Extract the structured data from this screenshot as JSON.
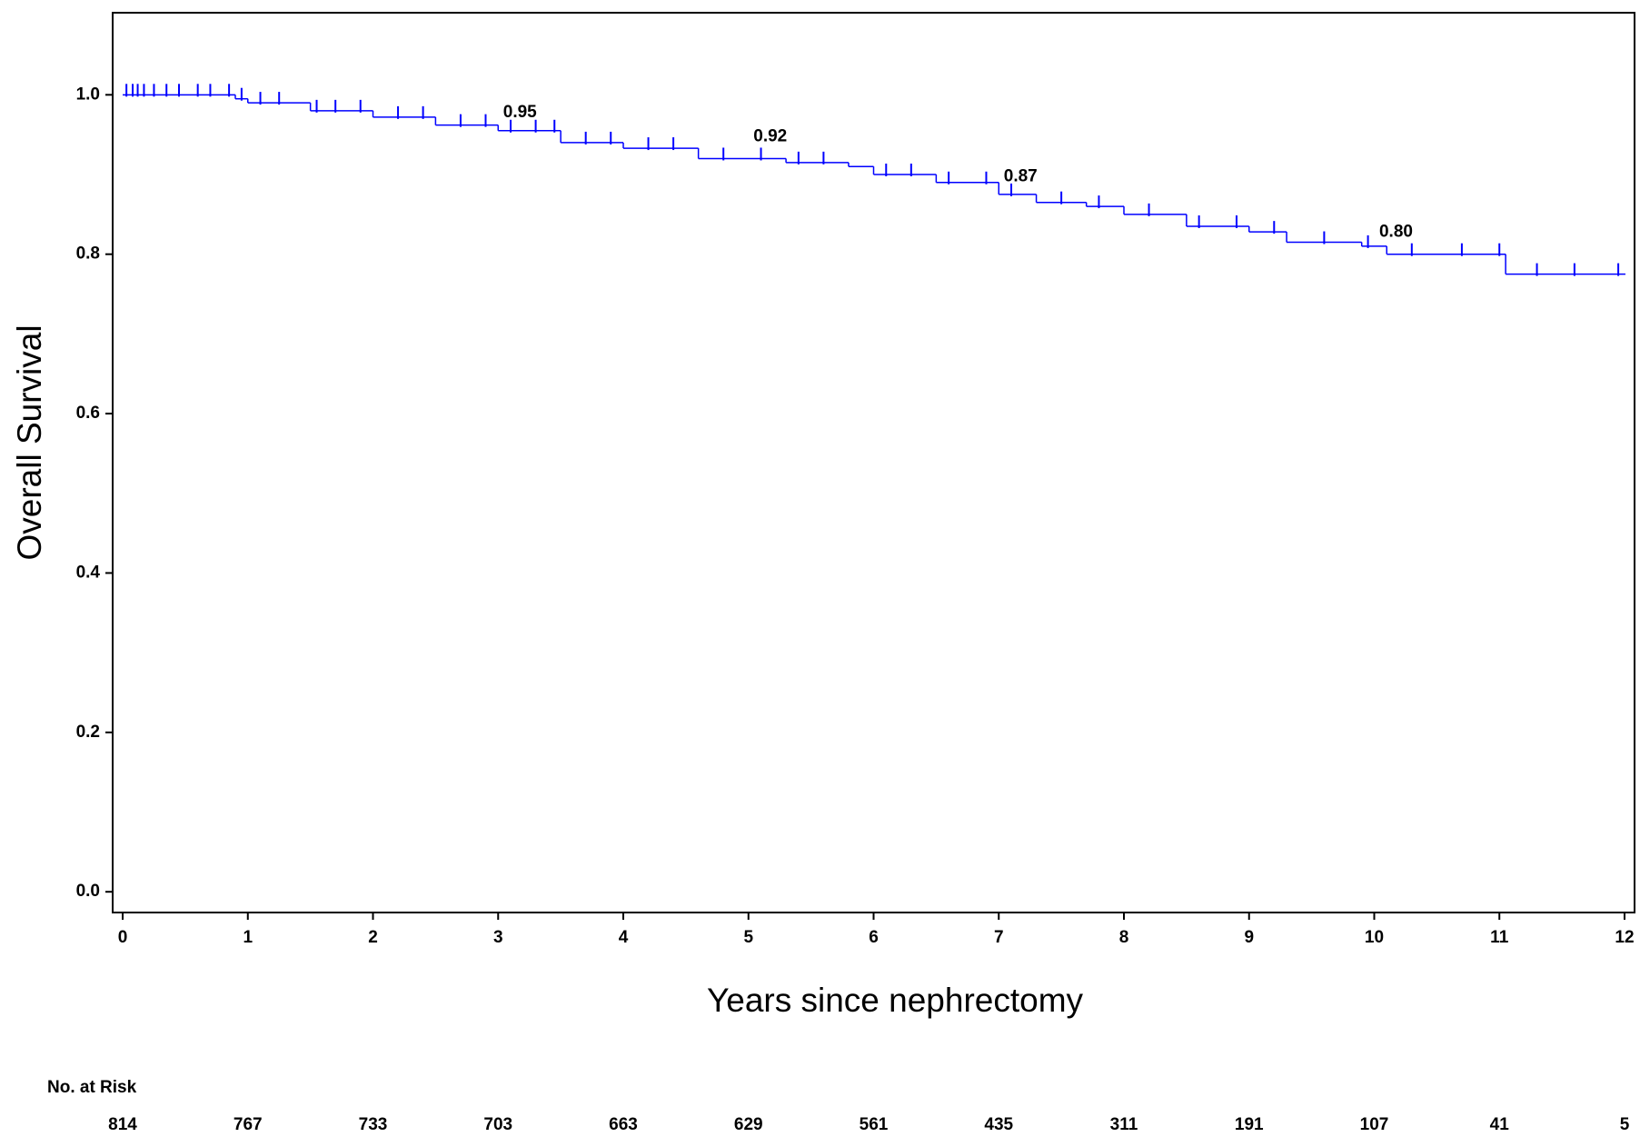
{
  "chart_data": {
    "type": "kaplan-meier",
    "xlabel": "Years since nephrectomy",
    "ylabel": "Overall Survival",
    "xlim": [
      -0.08,
      12.08
    ],
    "ylim": [
      -0.026,
      1.103
    ],
    "xticks": [
      0,
      1,
      2,
      3,
      4,
      5,
      6,
      7,
      8,
      9,
      10,
      11,
      12
    ],
    "yticks": [
      {
        "value": 0,
        "label": "0.0"
      },
      {
        "value": 0.2,
        "label": "0.2"
      },
      {
        "value": 0.4,
        "label": "0.4"
      },
      {
        "value": 0.6,
        "label": "0.6"
      },
      {
        "value": 0.8,
        "label": "0.8"
      },
      {
        "value": 1,
        "label": "1.0"
      }
    ],
    "color": "#0000ff",
    "series": [
      {
        "x": [
          0,
          0.9,
          1.0,
          1.5,
          2.0,
          2.5,
          3.0,
          3.5,
          4.0,
          4.6,
          5.3,
          5.8,
          6.0,
          6.5,
          7.0,
          7.3,
          7.7,
          8.0,
          8.5,
          9.0,
          9.3,
          9.9,
          10.1,
          11.05,
          12
        ],
        "values": [
          1.0,
          0.995,
          0.99,
          0.98,
          0.972,
          0.962,
          0.955,
          0.94,
          0.933,
          0.92,
          0.915,
          0.91,
          0.9,
          0.89,
          0.875,
          0.865,
          0.86,
          0.85,
          0.835,
          0.828,
          0.815,
          0.81,
          0.8,
          0.775,
          0.775
        ]
      }
    ],
    "censored": {
      "x": [
        0.03,
        0.08,
        0.12,
        0.17,
        0.25,
        0.35,
        0.45,
        0.6,
        0.7,
        0.85,
        0.95,
        1.1,
        1.25,
        1.55,
        1.7,
        1.9,
        2.2,
        2.4,
        2.7,
        2.9,
        3.1,
        3.3,
        3.45,
        3.7,
        3.9,
        4.2,
        4.4,
        4.8,
        5.1,
        5.4,
        5.6,
        6.1,
        6.3,
        6.6,
        6.9,
        7.1,
        7.5,
        7.8,
        8.2,
        8.6,
        8.9,
        9.2,
        9.6,
        9.95,
        10.3,
        10.7,
        11.0,
        11.3,
        11.6,
        11.95
      ],
      "values": [
        1.0,
        1.0,
        1.0,
        1.0,
        1.0,
        1.0,
        1.0,
        1.0,
        1.0,
        1.0,
        0.995,
        0.99,
        0.99,
        0.98,
        0.98,
        0.98,
        0.972,
        0.972,
        0.962,
        0.962,
        0.955,
        0.955,
        0.955,
        0.94,
        0.94,
        0.933,
        0.933,
        0.92,
        0.92,
        0.915,
        0.915,
        0.9,
        0.9,
        0.89,
        0.89,
        0.875,
        0.865,
        0.86,
        0.85,
        0.835,
        0.835,
        0.828,
        0.815,
        0.81,
        0.8,
        0.8,
        0.8,
        0.775,
        0.775,
        0.775
      ]
    },
    "annotations": [
      {
        "x": 3,
        "value": 0.95,
        "label": "0.95"
      },
      {
        "x": 5,
        "value": 0.92,
        "label": "0.92"
      },
      {
        "x": 7,
        "value": 0.87,
        "label": "0.87"
      },
      {
        "x": 10,
        "value": 0.8,
        "label": "0.80"
      }
    ],
    "at_risk": {
      "label": "No. at Risk",
      "x": [
        0,
        1,
        2,
        3,
        4,
        5,
        6,
        7,
        8,
        9,
        10,
        11,
        12
      ],
      "values": [
        814,
        767,
        733,
        703,
        663,
        629,
        561,
        435,
        311,
        191,
        107,
        41,
        5
      ]
    }
  }
}
